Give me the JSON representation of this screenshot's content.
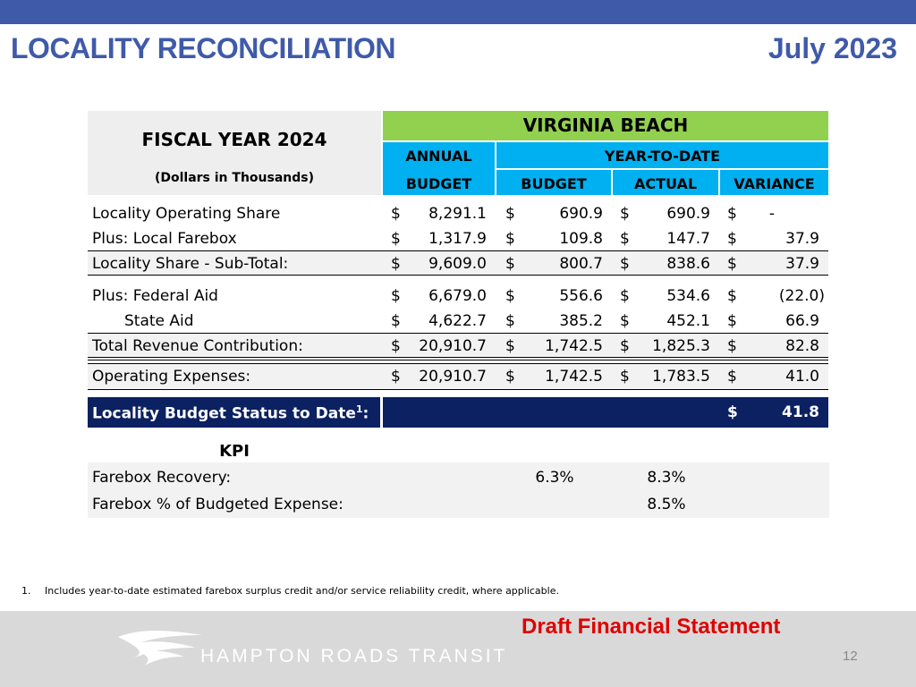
{
  "header": {
    "title": "LOCALITY RECONCILIATION",
    "date": "July 2023"
  },
  "table": {
    "fiscal_year": "FISCAL YEAR 2024",
    "units": "(Dollars in Thousands)",
    "locality": "VIRGINIA BEACH",
    "annual": "ANNUAL",
    "ytd": "YEAR-TO-DATE",
    "col_budget_annual": "BUDGET",
    "col_budget_ytd": "BUDGET",
    "col_actual": "ACTUAL",
    "col_variance": "VARIANCE",
    "currency": "$",
    "rows": [
      {
        "label": "Locality Operating Share",
        "annual": "8,291.1",
        "budget": "690.9",
        "actual": "690.9",
        "variance": "-"
      },
      {
        "label": "Plus: Local Farebox",
        "annual": "1,317.9",
        "budget": "109.8",
        "actual": "147.7",
        "variance": "37.9"
      },
      {
        "label": "Locality Share - Sub-Total:",
        "annual": "9,609.0",
        "budget": "800.7",
        "actual": "838.6",
        "variance": "37.9"
      },
      {
        "label": "Plus: Federal Aid",
        "annual": "6,679.0",
        "budget": "556.6",
        "actual": "534.6",
        "variance": "(22.0)"
      },
      {
        "label": "State Aid",
        "annual": "4,622.7",
        "budget": "385.2",
        "actual": "452.1",
        "variance": "66.9"
      },
      {
        "label": "Total Revenue Contribution:",
        "annual": "20,910.7",
        "budget": "1,742.5",
        "actual": "1,825.3",
        "variance": "82.8"
      },
      {
        "label": "Operating Expenses:",
        "annual": "20,910.7",
        "budget": "1,742.5",
        "actual": "1,783.5",
        "variance": "41.0"
      }
    ],
    "status_label": "Locality Budget Status to Date",
    "status_sup": "1",
    "status_colon": ":",
    "status_value": "41.8"
  },
  "kpi": {
    "title": "KPI",
    "rows": [
      {
        "label": "Farebox Recovery:",
        "budget": "6.3%",
        "actual": "8.3%"
      },
      {
        "label": "Farebox % of Budgeted Expense:",
        "budget": "",
        "actual": "8.5%"
      }
    ]
  },
  "footnote": {
    "number": "1.",
    "text": "Includes year-to-date estimated farebox surplus credit and/or service reliability credit, where applicable."
  },
  "footer": {
    "draft": "Draft Financial Statement",
    "brand": "HAMPTON ROADS TRANSIT",
    "page": "12"
  }
}
